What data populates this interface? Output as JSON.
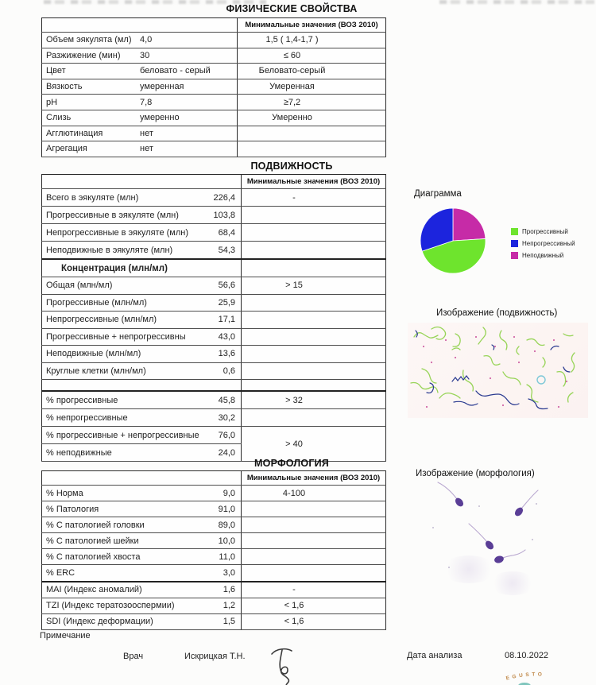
{
  "sections": {
    "physical": {
      "title": "ФИЗИЧЕСКИЕ СВОЙСТВА",
      "ref_header": "Минимальные значения (ВОЗ 2010)",
      "rows": [
        {
          "label": "Объем эякулята (мл)",
          "value": "4,0",
          "ref": "1,5 ( 1,4-1,7 )"
        },
        {
          "label": "Разжижение (мин)",
          "value": "30",
          "ref": "≤ 60"
        },
        {
          "label": "Цвет",
          "value": "беловато - серый",
          "ref": "Беловато-серый"
        },
        {
          "label": "Вязкость",
          "value": "умеренная",
          "ref": "Умеренная"
        },
        {
          "label": "pH",
          "value": "7,8",
          "ref": "≥7,2"
        },
        {
          "label": "Слизь",
          "value": "умеренно",
          "ref": "Умеренно"
        },
        {
          "label": "Агглютинация",
          "value": "нет",
          "ref": ""
        },
        {
          "label": "Агрегация",
          "value": "нет",
          "ref": ""
        }
      ]
    },
    "motility": {
      "title": "ПОДВИЖНОСТЬ",
      "ref_header": "Минимальные значения (ВОЗ 2010)",
      "ej": [
        {
          "label": "Всего в эякуляте (млн)",
          "value": "226,4",
          "ref": "-"
        },
        {
          "label": "Прогрессивные в эякуляте (млн)",
          "value": "103,8",
          "ref": ""
        },
        {
          "label": "Непрогрессивные в эякуляте (млн)",
          "value": "68,4",
          "ref": ""
        },
        {
          "label": "Неподвижные в эякуляте (млн)",
          "value": "54,3",
          "ref": ""
        }
      ],
      "conc_header": "Концентрация (млн/мл)",
      "conc": [
        {
          "label": "Общая (млн/мл)",
          "value": "56,6",
          "ref": "> 15"
        },
        {
          "label": "Прогрессивные (млн/мл)",
          "value": "25,9",
          "ref": ""
        },
        {
          "label": "Непрогрессивные (млн/мл)",
          "value": "17,1",
          "ref": ""
        },
        {
          "label": "Прогрессивные + непрогрессивны",
          "value": "43,0",
          "ref": ""
        },
        {
          "label": "Неподвижные (млн/мл)",
          "value": "13,6",
          "ref": ""
        },
        {
          "label": "Круглые клетки (млн/мл)",
          "value": "0,6",
          "ref": ""
        }
      ],
      "pct": [
        {
          "label": "% прогрессивные",
          "value": "45,8",
          "ref": "> 32"
        },
        {
          "label": "% непрогрессивные",
          "value": "30,2",
          "ref": ""
        },
        {
          "label": "% прогрессивные + непрогрессивные",
          "value": "76,0",
          "ref": "> 40"
        },
        {
          "label": "% неподвижные",
          "value": "24,0"
        }
      ]
    },
    "morphology": {
      "title": "МОРФОЛОГИЯ",
      "ref_header": "Минимальные значения (ВОЗ 2010)",
      "rows": [
        {
          "label": "% Норма",
          "value": "9,0",
          "ref": "4-100"
        },
        {
          "label": "% Патология",
          "value": "91,0",
          "ref": ""
        },
        {
          "label": "% С патологией головки",
          "value": "89,0",
          "ref": ""
        },
        {
          "label": "% С патологией шейки",
          "value": "10,0",
          "ref": ""
        },
        {
          "label": "% С патологией хвоста",
          "value": "11,0",
          "ref": ""
        },
        {
          "label": "% ERC",
          "value": "3,0",
          "ref": ""
        },
        {
          "label": "MAI (Индекс аномалий)",
          "value": "1,6",
          "ref": "-"
        },
        {
          "label": "TZI (Индекс тератозооспермии)",
          "value": "1,2",
          "ref": "< 1,6"
        },
        {
          "label": "SDI (Индекс деформации)",
          "value": "1,5",
          "ref": "< 1,6"
        }
      ]
    }
  },
  "chart_data": {
    "type": "pie",
    "title": "Диаграмма",
    "start_angle_deg": -90,
    "direction": "clockwise",
    "slices": [
      {
        "label": "Неподвижный",
        "value": 24.0,
        "color": "#c62ba7"
      },
      {
        "label": "Прогрессивный",
        "value": 45.8,
        "color": "#6ee42d"
      },
      {
        "label": "Непрогрессивный",
        "value": 30.2,
        "color": "#1c24dd"
      }
    ],
    "legend_order": [
      1,
      2,
      0
    ],
    "legend_position": "right"
  },
  "right_panel": {
    "motility_image_title": "Изображение (подвижность)",
    "morphology_image_title": "Изображение  (морфология)"
  },
  "footer": {
    "note": "Примечание",
    "doctor_label": "Врач",
    "doctor_name": "Искрицкая Т.Н.",
    "date_label": "Дата анализа",
    "date_value": "08.10.2022",
    "stamp_text": "EGUSTO",
    "stamp_color": "#c08848"
  }
}
